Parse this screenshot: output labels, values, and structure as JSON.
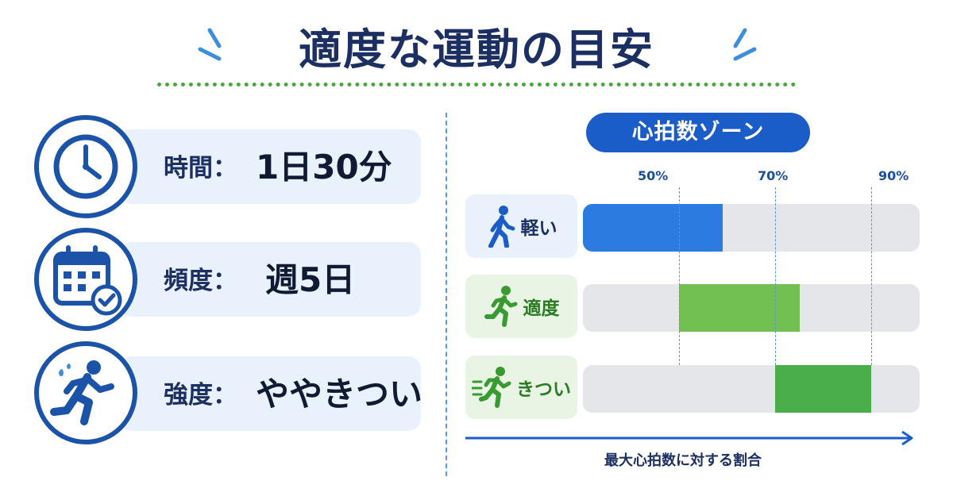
{
  "title": "適度な運動の目安",
  "info": {
    "time": {
      "label": "時間：",
      "value": "1日30分",
      "icon": "clock-icon"
    },
    "frequency": {
      "label": "頻度：",
      "value": "週5日",
      "icon": "calendar-check-icon"
    },
    "intensity": {
      "label": "強度：",
      "value": "ややきつい",
      "icon": "runner-sweat-icon"
    }
  },
  "zone": {
    "header": "心拍数ゾーン",
    "axis_caption": "最大心拍数に対する割合"
  },
  "chart_data": {
    "type": "bar",
    "title": "心拍数ゾーン",
    "xlabel": "最大心拍数に対する割合",
    "tick_labels": [
      "50%",
      "70%",
      "90%"
    ],
    "categories": [
      "軽い",
      "適度",
      "きつい"
    ],
    "ranges": [
      {
        "name": "軽い",
        "start": 30,
        "end": 59,
        "color": "#2b7be0"
      },
      {
        "name": "適度",
        "start": 50,
        "end": 75,
        "color": "#72c052"
      },
      {
        "name": "きつい",
        "start": 70,
        "end": 90,
        "color": "#4aae4a"
      }
    ],
    "xlim": [
      30,
      100
    ]
  },
  "colors": {
    "navy": "#1b2f63",
    "blue": "#1a5cc8",
    "light_blue_bg": "#e9f2fc",
    "light_green_bg": "#e9f5e4",
    "track": "#e4e6ea"
  }
}
